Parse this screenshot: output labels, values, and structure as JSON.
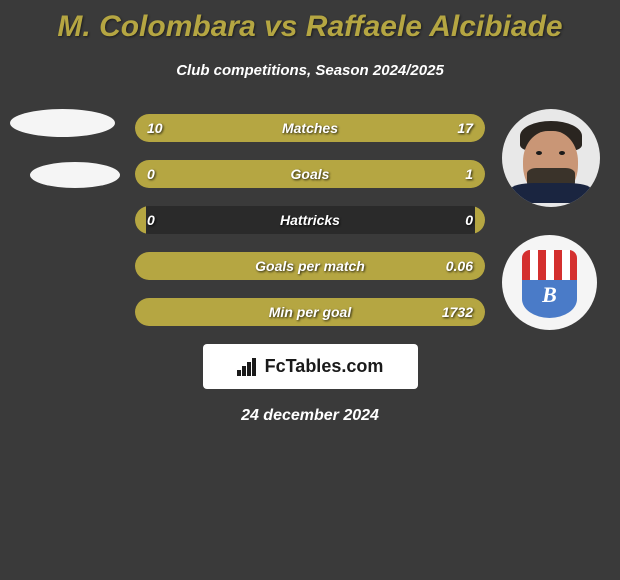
{
  "title": "M. Colombara vs Raffaele Alcibiade",
  "subtitle": "Club competitions, Season 2024/2025",
  "accent_color": "#b5a642",
  "background_color": "#3a3a3a",
  "text_color": "#ffffff",
  "stats": [
    {
      "label": "Matches",
      "left_val": "10",
      "right_val": "17",
      "left_pct": 37,
      "right_pct": 63
    },
    {
      "label": "Goals",
      "left_val": "0",
      "right_val": "1",
      "left_pct": 3,
      "right_pct": 97
    },
    {
      "label": "Hattricks",
      "left_val": "0",
      "right_val": "0",
      "left_pct": 3,
      "right_pct": 3
    },
    {
      "label": "Goals per match",
      "left_val": "",
      "right_val": "0.06",
      "left_pct": 0,
      "right_pct": 100
    },
    {
      "label": "Min per goal",
      "left_val": "",
      "right_val": "1732",
      "left_pct": 0,
      "right_pct": 100
    }
  ],
  "footer_brand": "FcTables.com",
  "date": "24 december 2024",
  "team_logo_letter": "B"
}
